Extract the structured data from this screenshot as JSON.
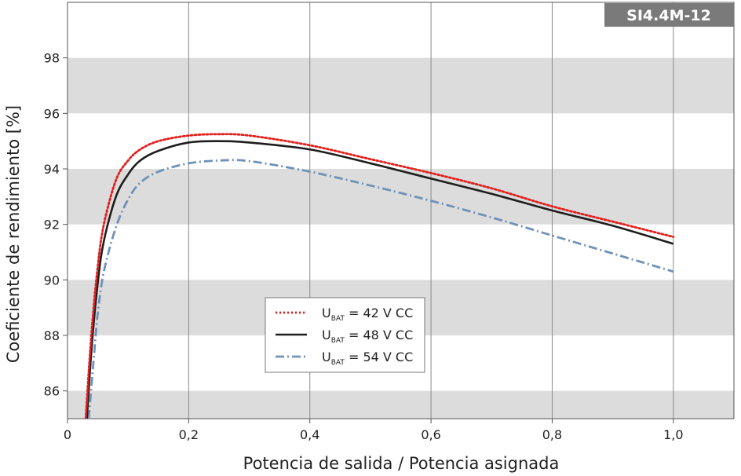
{
  "chart_data": {
    "type": "line",
    "title": "",
    "badge": "SI4.4M-12",
    "xlabel": "Potencia de salida / Potencia asignada",
    "ylabel": "Coeficiente de rendimiento [%]",
    "xlim": [
      0,
      1.1
    ],
    "ylim": [
      85,
      100
    ],
    "x_ticks": [
      0,
      0.2,
      0.4,
      0.6,
      0.8,
      1.0
    ],
    "x_tick_labels": [
      "0",
      "0,2",
      "0,4",
      "0,6",
      "0,8",
      "1,0"
    ],
    "y_ticks": [
      86,
      88,
      90,
      92,
      94,
      96,
      98
    ],
    "y_tick_labels": [
      "86",
      "88",
      "90",
      "92",
      "94",
      "96",
      "98"
    ],
    "grid": "vertical lines at x ticks, alternating horizontal bands",
    "band_color": "#dcdcdc",
    "legend_position": "center-left",
    "series": [
      {
        "label_main": "U",
        "label_sub": "BAT",
        "label_rest": " = 42 V CC",
        "color": "#e0201e",
        "style": "dotted",
        "x": [
          0.03,
          0.04,
          0.05,
          0.06,
          0.08,
          0.1,
          0.12,
          0.15,
          0.2,
          0.25,
          0.3,
          0.4,
          0.5,
          0.6,
          0.7,
          0.8,
          0.9,
          1.0
        ],
        "y": [
          85.0,
          88.2,
          90.5,
          92.0,
          93.6,
          94.3,
          94.7,
          95.0,
          95.2,
          95.25,
          95.2,
          94.85,
          94.35,
          93.85,
          93.3,
          92.65,
          92.1,
          91.55
        ]
      },
      {
        "label_main": "U",
        "label_sub": "BAT",
        "label_rest": " = 48 V CC",
        "color": "#1e1e1e",
        "style": "solid",
        "x": [
          0.032,
          0.04,
          0.05,
          0.06,
          0.08,
          0.1,
          0.12,
          0.15,
          0.2,
          0.25,
          0.3,
          0.4,
          0.5,
          0.6,
          0.7,
          0.8,
          0.9,
          1.0
        ],
        "y": [
          85.0,
          87.6,
          89.9,
          91.4,
          93.0,
          93.8,
          94.3,
          94.65,
          94.95,
          95.0,
          94.95,
          94.7,
          94.2,
          93.65,
          93.1,
          92.5,
          91.95,
          91.3
        ]
      },
      {
        "label_main": "U",
        "label_sub": "BAT",
        "label_rest": " = 54 V CC",
        "color": "#7091b8",
        "style": "dashdot",
        "x": [
          0.035,
          0.045,
          0.05,
          0.06,
          0.08,
          0.1,
          0.12,
          0.15,
          0.2,
          0.25,
          0.3,
          0.4,
          0.5,
          0.6,
          0.7,
          0.8,
          0.9,
          1.0
        ],
        "y": [
          85.0,
          87.6,
          88.8,
          90.3,
          91.9,
          92.9,
          93.5,
          93.9,
          94.2,
          94.3,
          94.28,
          93.9,
          93.4,
          92.85,
          92.25,
          91.6,
          90.95,
          90.3
        ]
      }
    ]
  }
}
